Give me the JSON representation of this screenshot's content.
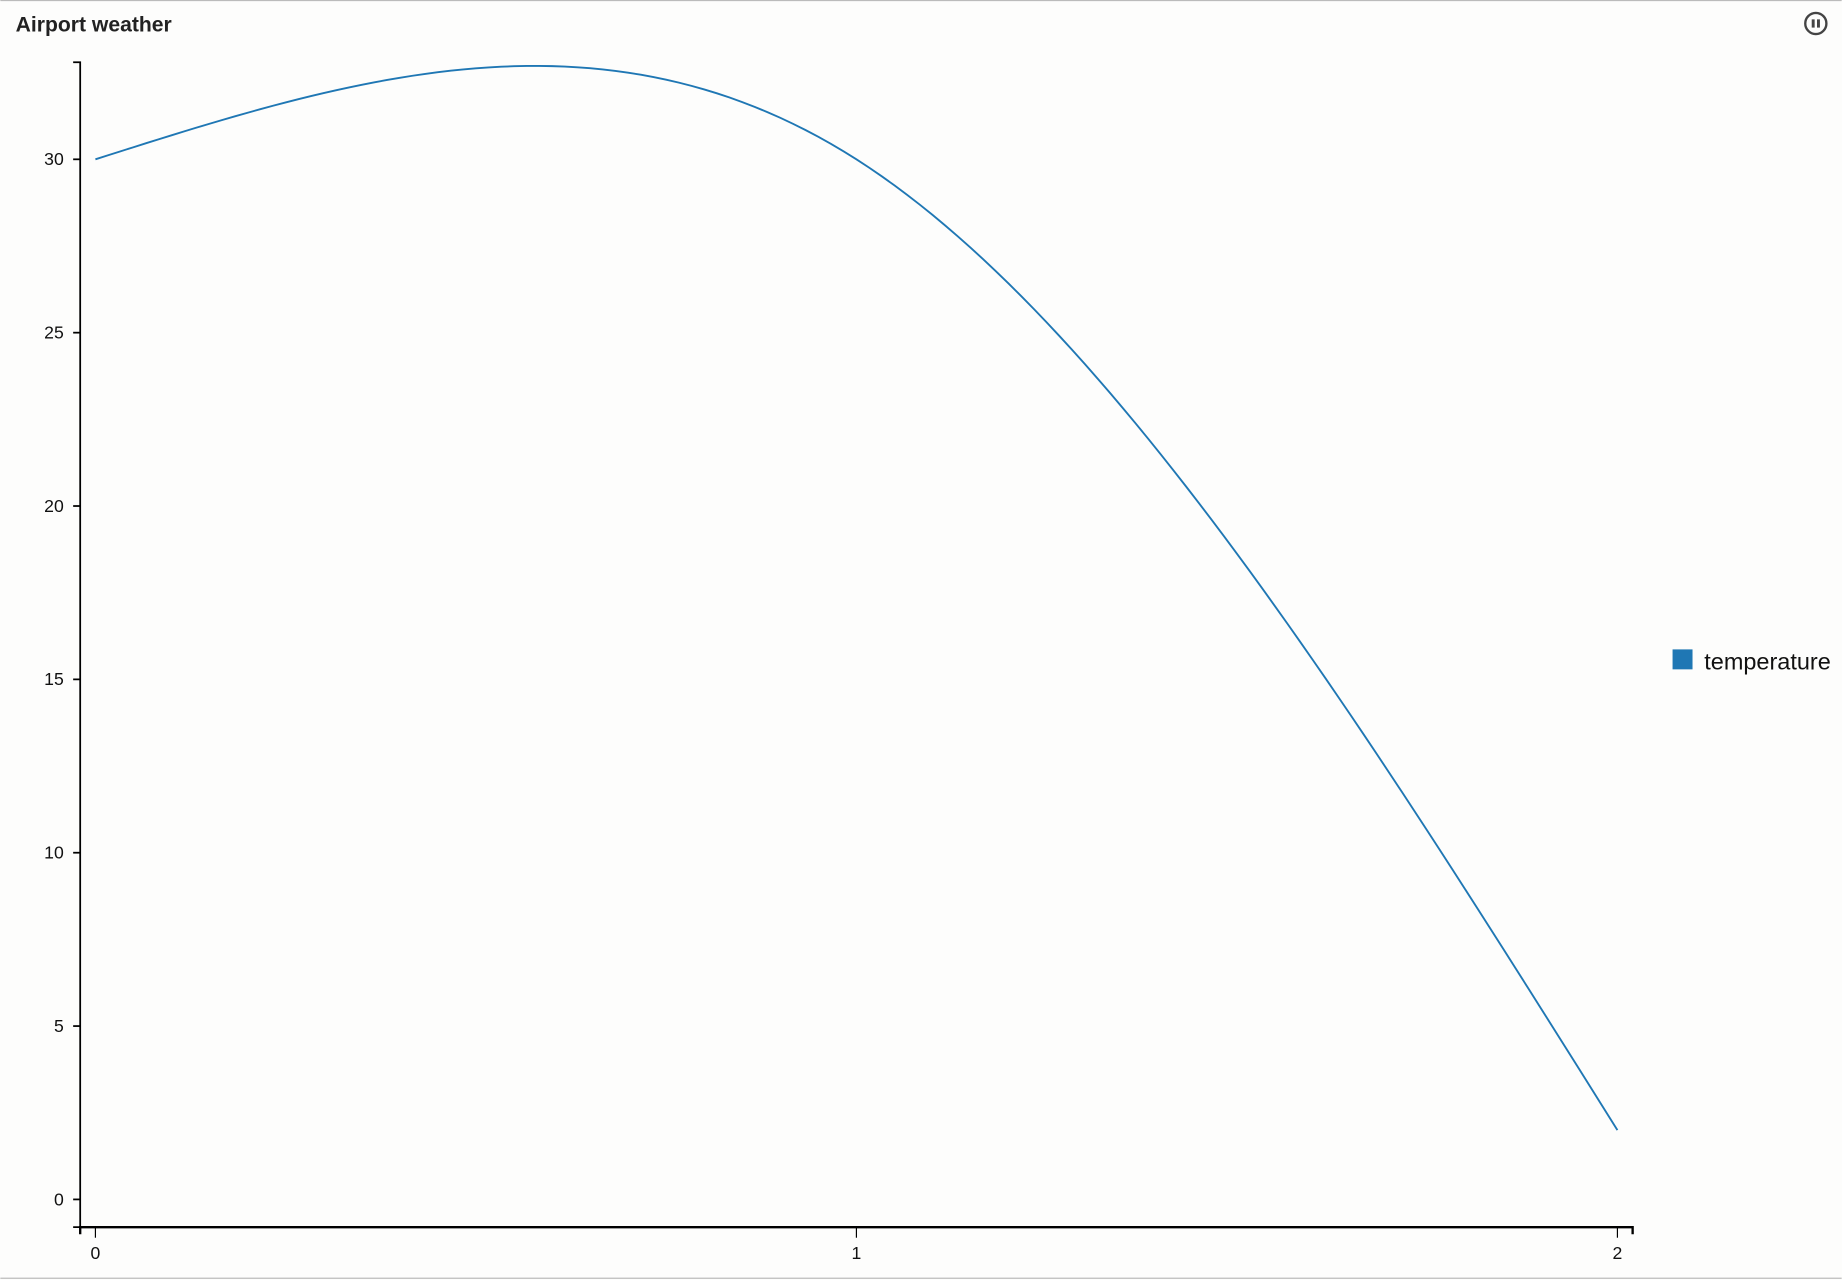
{
  "panel": {
    "title": "Airport weather",
    "pause_icon": "pause-circle-icon"
  },
  "chart_data": {
    "type": "line",
    "title": "Airport weather",
    "x": [
      0,
      1,
      2
    ],
    "series": [
      {
        "name": "temperature",
        "values": [
          30,
          30,
          2
        ],
        "color": "#1f77b4"
      }
    ],
    "x_ticks": [
      "0",
      "1",
      "2"
    ],
    "y_ticks": [
      "0",
      "5",
      "10",
      "15",
      "20",
      "25",
      "30"
    ],
    "xlim": [
      -0.02,
      2.02
    ],
    "ylim": [
      -0.8,
      32.8
    ],
    "curve": "smooth",
    "grid": false,
    "legend": "right"
  }
}
